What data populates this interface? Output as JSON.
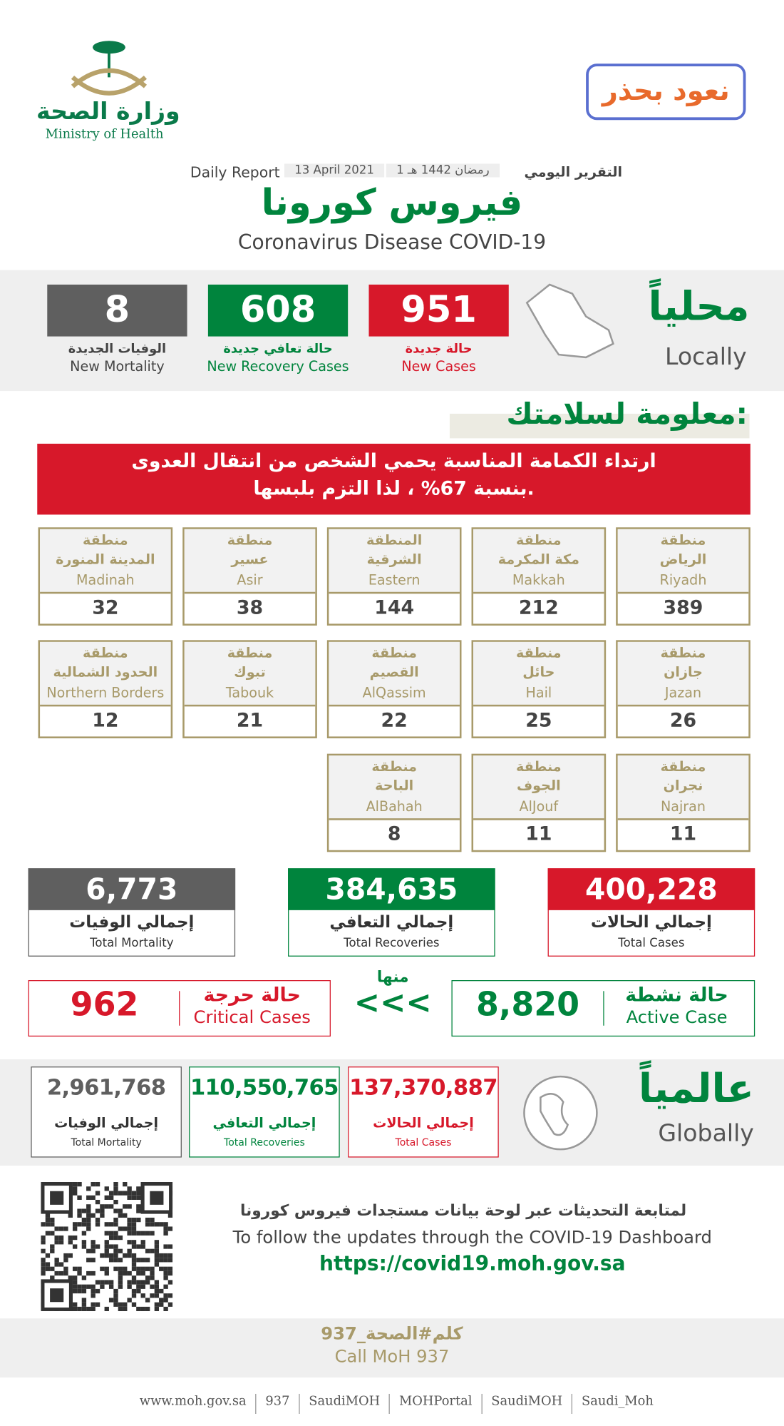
{
  "header": {
    "logo_ar": "وزارة الصحة",
    "logo_en": "Ministry of Health",
    "campaign": "نعود بحذر",
    "report_ar": "التقرير اليومي",
    "report_date_hijri": "1 رمضان 1442 هـ",
    "report_date": "13 April 2021",
    "report_en": "Daily Report",
    "title_ar": "فيروس كورونا",
    "title_en": "Coronavirus Disease COVID-19"
  },
  "local": {
    "label_ar": "محلياً",
    "label_en": "Locally",
    "stats": [
      {
        "value": "951",
        "label_ar": "حالة جديدة",
        "label_en": "New Cases"
      },
      {
        "value": "608",
        "label_ar": "حالة تعافي جديدة",
        "label_en": "New Recovery Cases"
      },
      {
        "value": "8",
        "label_ar": "الوفيات الجديدة",
        "label_en": "New Mortality"
      }
    ]
  },
  "safety": {
    "heading": "معلومة لسلامتك:",
    "lines": [
      "ارتداء الكمامة المناسبة يحمي الشخص من انتقال العدوى",
      "بنسبة 67% ، لذا التزم بلبسها."
    ]
  },
  "regions": [
    [
      {
        "ar": [
          "منطقة",
          "الرياض"
        ],
        "en": "Riyadh",
        "value": "389"
      },
      {
        "ar": [
          "منطقة",
          "مكة المكرمة"
        ],
        "en": "Makkah",
        "value": "212"
      },
      {
        "ar": [
          "المنطقة",
          "الشرقية"
        ],
        "en": "Eastern",
        "value": "144"
      },
      {
        "ar": [
          "منطقة",
          "عسير"
        ],
        "en": "Asir",
        "value": "38"
      },
      {
        "ar": [
          "منطقة",
          "المدينة المنورة"
        ],
        "en": "Madinah",
        "value": "32"
      }
    ],
    [
      {
        "ar": [
          "منطقة",
          "جازان"
        ],
        "en": "Jazan",
        "value": "26"
      },
      {
        "ar": [
          "منطقة",
          "حائل"
        ],
        "en": "Hail",
        "value": "25"
      },
      {
        "ar": [
          "منطقة",
          "القصيم"
        ],
        "en": "AlQassim",
        "value": "22"
      },
      {
        "ar": [
          "منطقة",
          "تبوك"
        ],
        "en": "Tabouk",
        "value": "21"
      },
      {
        "ar": [
          "منطقة",
          "الحدود الشمالية"
        ],
        "en": "Northern Borders",
        "value": "12"
      }
    ],
    [
      {
        "ar": [
          "منطقة",
          "نجران"
        ],
        "en": "Najran",
        "value": "11"
      },
      {
        "ar": [
          "منطقة",
          "الجوف"
        ],
        "en": "AlJouf",
        "value": "11"
      },
      {
        "ar": [
          "منطقة",
          "الباحة"
        ],
        "en": "AlBahah",
        "value": "8"
      }
    ]
  ],
  "totals": [
    {
      "value": "400,228",
      "label_ar": "إجمالي الحالات",
      "label_en": "Total Cases"
    },
    {
      "value": "384,635",
      "label_ar": "إجمالي التعافي",
      "label_en": "Total Recoveries"
    },
    {
      "value": "6,773",
      "label_ar": "إجمالي الوفيات",
      "label_en": "Total Mortality"
    }
  ],
  "active": {
    "label_ar": "حالة نشطة",
    "label_en": "Active Case",
    "value": "8,820"
  },
  "of_which": "منها",
  "arrows": "<<<",
  "critical": {
    "label_ar": "حالة حرجة",
    "label_en": "Critical Cases",
    "value": "962"
  },
  "global": {
    "label_ar": "عالمياً",
    "label_en": "Globally",
    "stats": [
      {
        "value": "137,370,887",
        "label_ar": "إجمالي الحالات",
        "label_en": "Total Cases"
      },
      {
        "value": "110,550,765",
        "label_ar": "إجمالي التعافي",
        "label_en": "Total Recoveries"
      },
      {
        "value": "2,961,768",
        "label_ar": "إجمالي الوفيات",
        "label_en": "Total Mortality"
      }
    ]
  },
  "footer": {
    "follow_ar": "لمتابعة التحديثات عبر لوحة بيانات مستجدات فيروس كورونا",
    "follow_en": "To follow the updates through the COVID-19 Dashboard",
    "url": "https://covid19.moh.gov.sa",
    "hotline_ar": "كلم#الصحة_937",
    "hotline_en": "Call MoH 937",
    "links": [
      "www.moh.gov.sa",
      "937",
      "SaudiMOH",
      "MOHPortal",
      "SaudiMOH",
      "Saudi_Moh"
    ]
  }
}
